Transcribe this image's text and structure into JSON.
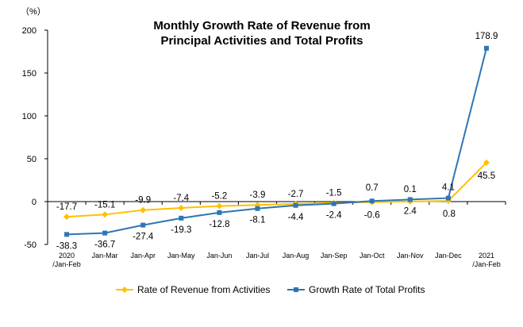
{
  "chart_data": {
    "type": "line",
    "title_lines": [
      "Monthly Growth Rate of Revenue from",
      "Principal Activities  and Total Profits"
    ],
    "y_unit": "（%）",
    "ylim": [
      -50,
      200
    ],
    "yticks": [
      -50,
      0,
      50,
      100,
      150,
      200
    ],
    "categories": [
      [
        "2020",
        "/Jan-Feb"
      ],
      [
        "Jan-Mar"
      ],
      [
        "Jan-Apr"
      ],
      [
        "Jan-May"
      ],
      [
        "Jan-Jun"
      ],
      [
        "Jan-Jul"
      ],
      [
        "Jan-Aug"
      ],
      [
        "Jan-Sep"
      ],
      [
        "Jan-Oct"
      ],
      [
        "Jan-Nov"
      ],
      [
        "Jan-Dec"
      ],
      [
        "2021",
        "/Jan-Feb"
      ]
    ],
    "series": [
      {
        "name": "Rate of Revenue from Activities",
        "color": "#FFC000",
        "marker": "diamond",
        "values": [
          -17.7,
          -15.1,
          -9.9,
          -7.4,
          -5.2,
          -3.9,
          -2.7,
          -1.5,
          -0.6,
          0.1,
          0.8,
          45.5
        ],
        "labels": [
          "-17.7",
          "-15.1",
          "-9.9",
          "-7.4",
          "-5.2",
          "-3.9",
          "-2.7",
          "-1.5",
          "-0.6",
          "0.1",
          "0.8",
          "45.5"
        ]
      },
      {
        "name": "Growth Rate of Total Profits",
        "color": "#2E75B6",
        "marker": "square",
        "values": [
          -38.3,
          -36.7,
          -27.4,
          -19.3,
          -12.8,
          -8.1,
          -4.4,
          -2.4,
          0.7,
          2.4,
          4.1,
          178.9
        ],
        "labels": [
          "-38.3",
          "-36.7",
          "-27.4",
          "-19.3",
          "-12.8",
          "-8.1",
          "-4.4",
          "-2.4",
          "0.7",
          "2.4",
          "4.1",
          "178.9"
        ]
      }
    ],
    "legend_position": "bottom",
    "grid": false
  }
}
